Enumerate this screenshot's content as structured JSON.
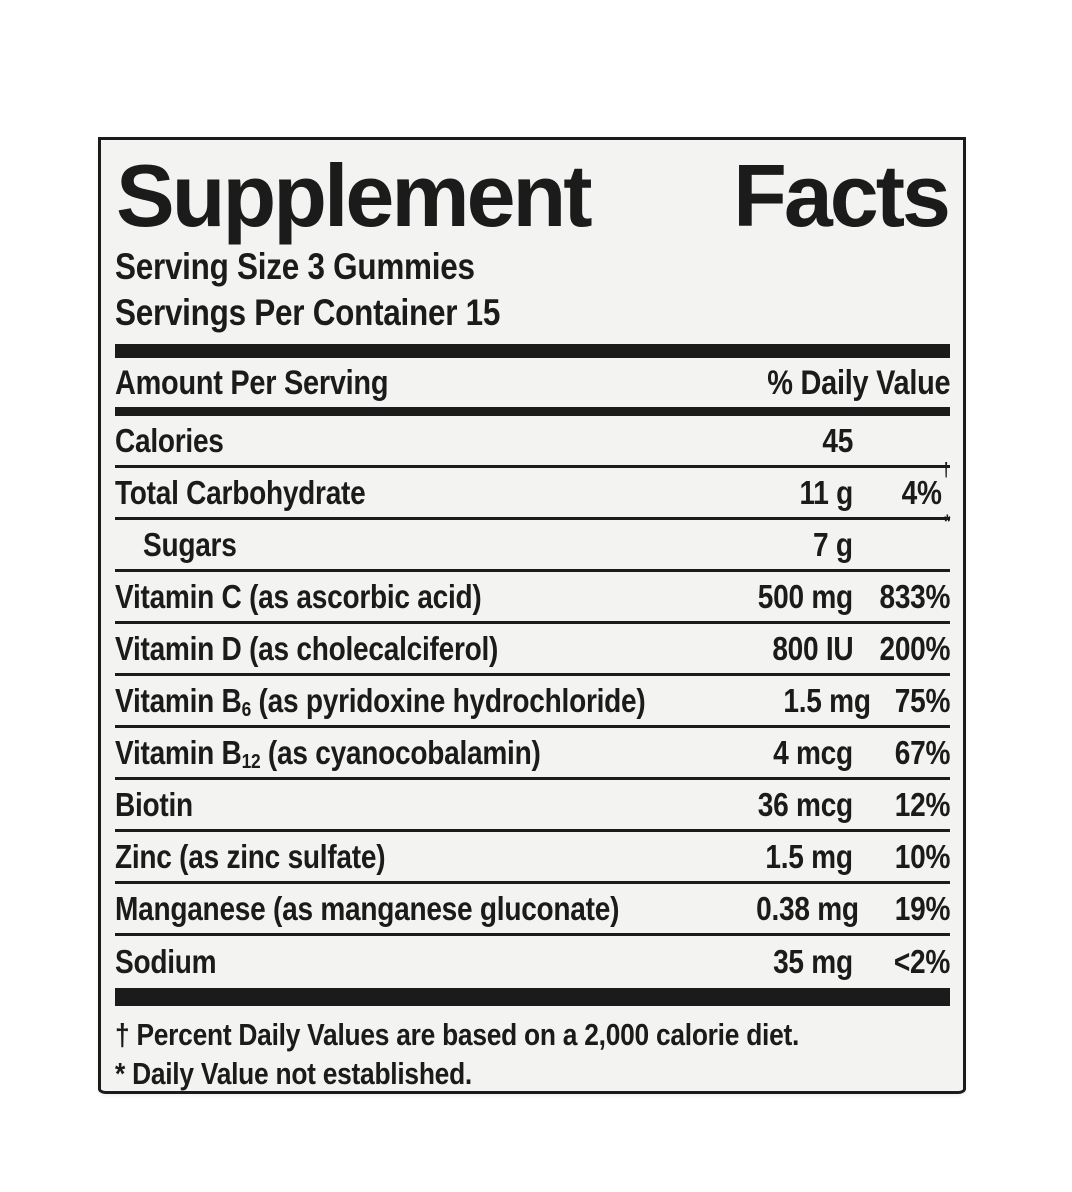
{
  "label": {
    "title": {
      "word1": "Supplement",
      "word2": "Facts"
    },
    "serving_size": "Serving Size 3 Gummies",
    "servings_per_container": "Servings Per Container 15",
    "column_headers": {
      "left": "Amount Per Serving",
      "right": "% Daily Value"
    },
    "rows": [
      {
        "name": "calories",
        "label_parts": [
          {
            "text": "Calories"
          }
        ],
        "amount": "45",
        "dv_parts": []
      },
      {
        "name": "total-carbohydrate",
        "label_parts": [
          {
            "text": "Total Carbohydrate"
          }
        ],
        "amount": "11 g",
        "dv_parts": [
          {
            "text": "4%"
          },
          {
            "text": "†",
            "sup": true
          }
        ]
      },
      {
        "name": "sugars",
        "indent": true,
        "label_parts": [
          {
            "text": "Sugars"
          }
        ],
        "amount": "7 g",
        "dv_parts": [
          {
            "text": "*",
            "sup": true
          }
        ]
      },
      {
        "name": "vitamin-c",
        "label_parts": [
          {
            "text": "Vitamin C (as ascorbic acid)"
          }
        ],
        "amount": "500 mg",
        "dv_parts": [
          {
            "text": "833%"
          }
        ]
      },
      {
        "name": "vitamin-d",
        "label_parts": [
          {
            "text": "Vitamin D (as cholecalciferol)"
          }
        ],
        "amount": "800 IU",
        "dv_parts": [
          {
            "text": "200%"
          }
        ]
      },
      {
        "name": "vitamin-b6",
        "label_parts": [
          {
            "text": "Vitamin B"
          },
          {
            "text": "6",
            "sub": true
          },
          {
            "text": " (as pyridoxine hydrochloride)"
          }
        ],
        "amount": "1.5 mg",
        "dv_parts": [
          {
            "text": "75%"
          }
        ]
      },
      {
        "name": "vitamin-b12",
        "label_parts": [
          {
            "text": "Vitamin B"
          },
          {
            "text": "12",
            "sub": true
          },
          {
            "text": " (as cyanocobalamin)"
          }
        ],
        "amount": "4 mcg",
        "dv_parts": [
          {
            "text": "67%"
          }
        ]
      },
      {
        "name": "biotin",
        "label_parts": [
          {
            "text": "Biotin"
          }
        ],
        "amount": "36 mcg",
        "dv_parts": [
          {
            "text": "12%"
          }
        ]
      },
      {
        "name": "zinc",
        "label_parts": [
          {
            "text": "Zinc (as zinc sulfate)"
          }
        ],
        "amount": "1.5 mg",
        "dv_parts": [
          {
            "text": "10%"
          }
        ]
      },
      {
        "name": "manganese",
        "label_parts": [
          {
            "text": "Manganese (as manganese gluconate)"
          }
        ],
        "amount": "0.38 mg",
        "dv_parts": [
          {
            "text": "19%"
          }
        ]
      },
      {
        "name": "sodium",
        "label_parts": [
          {
            "text": "Sodium"
          }
        ],
        "amount": "35 mg",
        "dv_parts": [
          {
            "text": "<2%"
          }
        ]
      }
    ],
    "footnotes": [
      "† Percent Daily Values are based on a 2,000 calorie diet.",
      "* Daily Value not established."
    ],
    "colors": {
      "ink": "#1b1b1b",
      "label_bg": "#f3f3f1",
      "page_bg": "#ffffff"
    }
  }
}
